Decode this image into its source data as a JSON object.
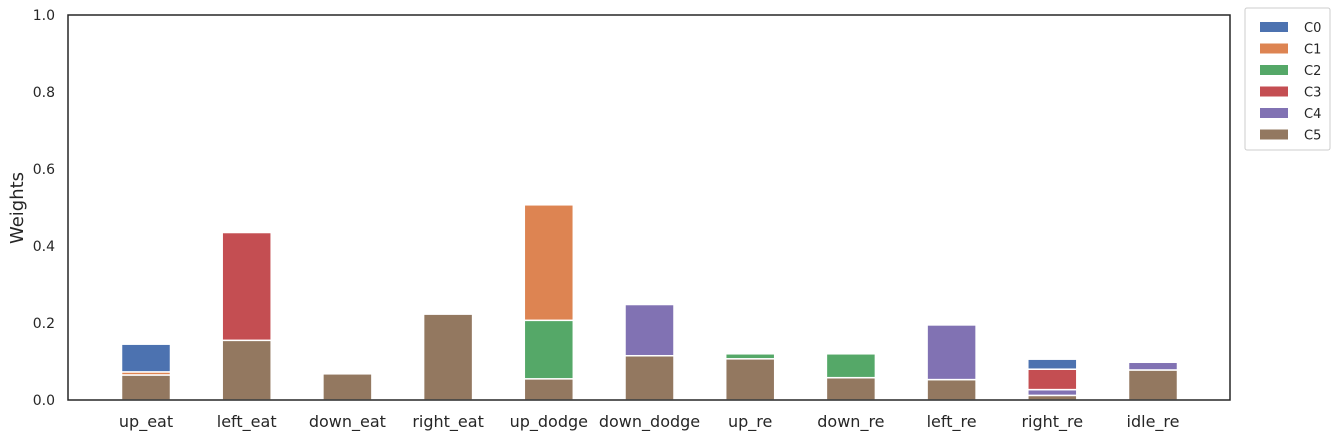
{
  "chart_data": {
    "type": "bar",
    "stacked": true,
    "categories": [
      "up_eat",
      "left_eat",
      "down_eat",
      "right_eat",
      "up_dodge",
      "down_dodge",
      "up_re",
      "down_re",
      "left_re",
      "right_re",
      "idle_re"
    ],
    "series": [
      {
        "name": "C5",
        "color": "#937860",
        "values": [
          0.065,
          0.155,
          0.068,
          0.223,
          0.055,
          0.115,
          0.107,
          0.058,
          0.053,
          0.012,
          0.078
        ]
      },
      {
        "name": "C4",
        "color": "#8172b3",
        "values": [
          0.0,
          0.0,
          0.0,
          0.0,
          0.0,
          0.133,
          0.0,
          0.0,
          0.142,
          0.015,
          0.02
        ]
      },
      {
        "name": "C3",
        "color": "#c44e52",
        "values": [
          0.0,
          0.28,
          0.0,
          0.0,
          0.0,
          0.0,
          0.0,
          0.0,
          0.0,
          0.053,
          0.0
        ]
      },
      {
        "name": "C2",
        "color": "#55a868",
        "values": [
          0.0,
          0.0,
          0.0,
          0.0,
          0.152,
          0.0,
          0.013,
          0.062,
          0.0,
          0.0,
          0.0
        ]
      },
      {
        "name": "C1",
        "color": "#dd8452",
        "values": [
          0.008,
          0.0,
          0.0,
          0.0,
          0.3,
          0.0,
          0.0,
          0.0,
          0.0,
          0.0,
          0.0
        ]
      },
      {
        "name": "C0",
        "color": "#4c72b0",
        "values": [
          0.072,
          0.0,
          0.0,
          0.0,
          0.0,
          0.0,
          0.0,
          0.0,
          0.0,
          0.026,
          0.0
        ]
      }
    ],
    "legend_order": [
      "C0",
      "C1",
      "C2",
      "C3",
      "C4",
      "C5"
    ],
    "ylabel": "Weights",
    "xlabel": "",
    "ylim": [
      0,
      1
    ],
    "yticks": [
      "0.0",
      "0.2",
      "0.4",
      "0.6",
      "0.8",
      "1.0"
    ],
    "grid": false,
    "legend_position": "outside-top-right"
  }
}
